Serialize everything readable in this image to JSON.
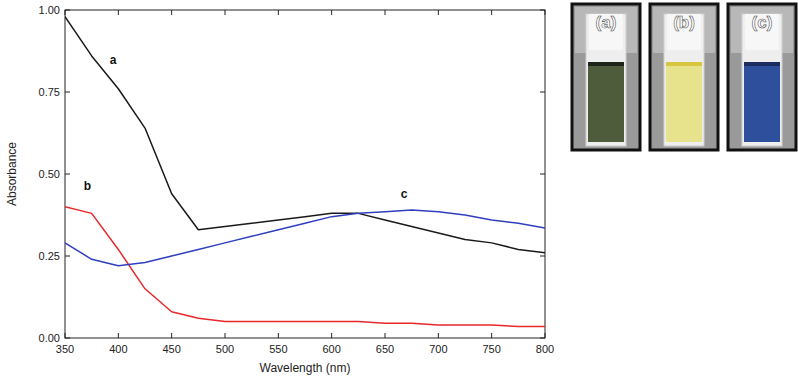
{
  "chart_data": {
    "type": "line",
    "x_label": "Wavelength (nm)",
    "y_label": "Absorbance",
    "x": [
      350,
      375,
      400,
      425,
      450,
      475,
      500,
      525,
      550,
      575,
      600,
      625,
      650,
      675,
      700,
      725,
      750,
      775,
      800
    ],
    "series": [
      {
        "name": "a",
        "color": "#1a1a1a",
        "values": [
          0.98,
          0.86,
          0.76,
          0.64,
          0.44,
          0.33,
          0.34,
          0.35,
          0.36,
          0.37,
          0.38,
          0.38,
          0.36,
          0.34,
          0.32,
          0.3,
          0.29,
          0.27,
          0.26
        ]
      },
      {
        "name": "b",
        "color": "#e8282a",
        "values": [
          0.4,
          0.38,
          0.27,
          0.15,
          0.08,
          0.06,
          0.05,
          0.05,
          0.05,
          0.05,
          0.05,
          0.05,
          0.045,
          0.045,
          0.04,
          0.04,
          0.04,
          0.035,
          0.035
        ]
      },
      {
        "name": "c",
        "color": "#2f3fbf",
        "values": [
          0.29,
          0.24,
          0.22,
          0.23,
          0.25,
          0.27,
          0.29,
          0.31,
          0.33,
          0.35,
          0.37,
          0.38,
          0.385,
          0.39,
          0.385,
          0.375,
          0.36,
          0.35,
          0.335
        ]
      }
    ],
    "xlim": [
      350,
      800
    ],
    "xticks": [
      350,
      400,
      450,
      500,
      550,
      600,
      650,
      700,
      750,
      800
    ],
    "ylim": [
      0,
      1
    ],
    "yticks": [
      {
        "value": 0,
        "label": "0.00"
      },
      {
        "value": 0.25,
        "label": "0.25"
      },
      {
        "value": 0.5,
        "label": "0.50"
      },
      {
        "value": 0.75,
        "label": "0.75"
      },
      {
        "value": 1,
        "label": "1.00"
      }
    ],
    "grid": false
  },
  "photos": {
    "labels": [
      "(a)",
      "(b)",
      "(c)"
    ]
  }
}
